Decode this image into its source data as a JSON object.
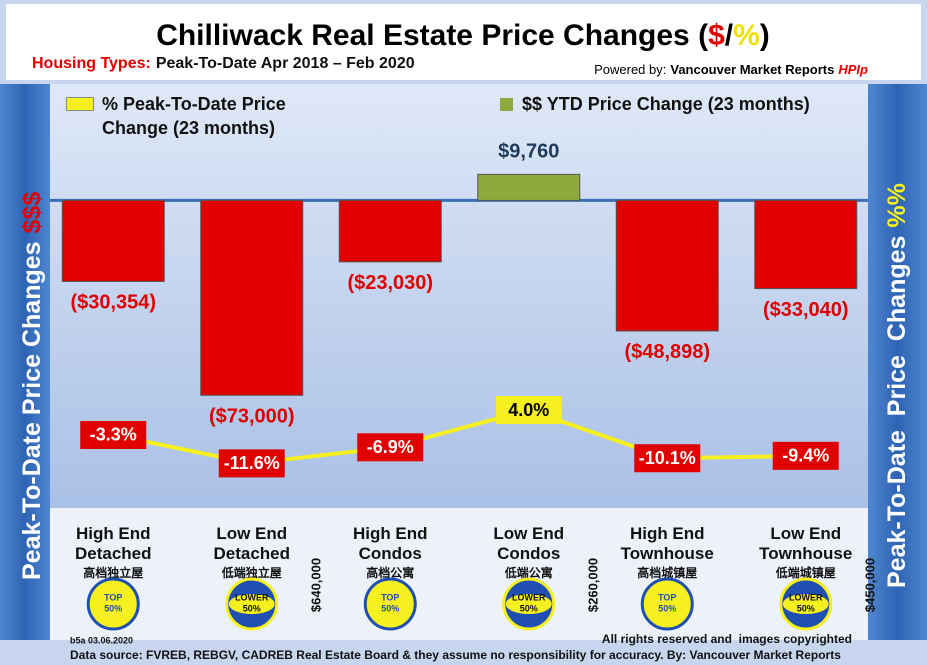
{
  "chart_data": {
    "type": "bar-line",
    "title_parts": [
      "Chilliwack Real Estate Price Changes (",
      "$",
      "/",
      "%",
      ")"
    ],
    "subtitle_label": "Housing Types:",
    "subtitle": "Peak-To-Date Apr 2018 – Feb 2020",
    "powered_by": "Powered by:",
    "powered_by_name": "Vancouver Market Reports",
    "powered_by_brand": "HPIp",
    "left_axis_label": "Peak-To-Date Price Changes",
    "left_axis_symbol": "$$$",
    "right_axis_label": "Peak-To-Date  Price  Changes",
    "right_axis_symbol": "%%",
    "categories": [
      "High End Detached",
      "Low End Detached",
      "High End Condos",
      "Low End Condos",
      "High End Townhouse",
      "Low End Townhouse"
    ],
    "category_subtitles": [
      "高档独立屋",
      "低端独立屋",
      "高档公寓",
      "低端公寓",
      "高档城镇屋",
      "低端城镇屋"
    ],
    "badges": [
      "TOP",
      "LOWER",
      "TOP",
      "LOWER",
      "TOP",
      "LOWER"
    ],
    "badge_share": "50%",
    "thresholds": [
      "$640,000",
      "$260,000",
      "$450,000"
    ],
    "ylim": [
      -80000,
      20000
    ],
    "y2lim": [
      -15,
      5
    ],
    "series": [
      {
        "name": "$$ YTD Price Change (23 months)",
        "type": "bar",
        "color": "#e00000",
        "positive_color": "#8faa3c",
        "values": [
          -30354,
          -73000,
          -23030,
          9760,
          -48898,
          -33040
        ],
        "value_labels": [
          "($30,354)",
          "($73,000)",
          "($23,030)",
          "$9,760",
          "($48,898)",
          "($33,040)"
        ]
      },
      {
        "name": "% Peak-To-Date Price Change (23 months)",
        "type": "line",
        "axis": "y2",
        "color": "#f5f01e",
        "values": [
          -3.3,
          -11.6,
          -6.9,
          4.0,
          -10.1,
          -9.4
        ],
        "value_labels": [
          "-3.3%",
          "-11.6%",
          "-6.9%",
          "4.0%",
          "-10.1%",
          "-9.4%"
        ]
      }
    ],
    "footer_code": "b5a 03.06.2020",
    "rights": "All rights reserved and  images copyrighted",
    "source": "Data source: FVREB, REBGV, CADREB Real Estate Board & they assume no responsibility for accuracy. By: Vancouver Market Reports"
  }
}
